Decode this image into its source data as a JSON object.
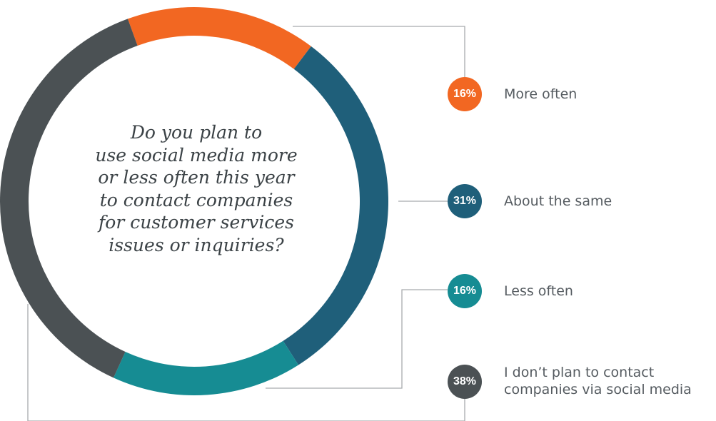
{
  "question_lines": [
    "Do you plan to",
    "use social media more",
    "or less often this year",
    "to contact companies",
    "for customer services",
    "issues or inquiries?"
  ],
  "chart_data": {
    "type": "pie",
    "variant": "donut",
    "title": "Do you plan to use social media more or less often this year to contact companies for customer services issues or inquiries?",
    "categories": [
      "More often",
      "About the same",
      "Less often",
      "I don’t plan to contact companies via social media"
    ],
    "values": [
      16,
      31,
      16,
      38
    ],
    "unit": "%",
    "colors": [
      "#f26722",
      "#1f5f7a",
      "#168c93",
      "#4b5154"
    ]
  },
  "legend": [
    {
      "percent": "16%",
      "lines": [
        "More often"
      ],
      "color": "#f26722"
    },
    {
      "percent": "31%",
      "lines": [
        "About the same"
      ],
      "color": "#1f5f7a"
    },
    {
      "percent": "16%",
      "lines": [
        "Less often"
      ],
      "color": "#168c93"
    },
    {
      "percent": "38%",
      "lines": [
        "I don’t plan to contact",
        "companies via social media"
      ],
      "color": "#4b5154"
    }
  ]
}
